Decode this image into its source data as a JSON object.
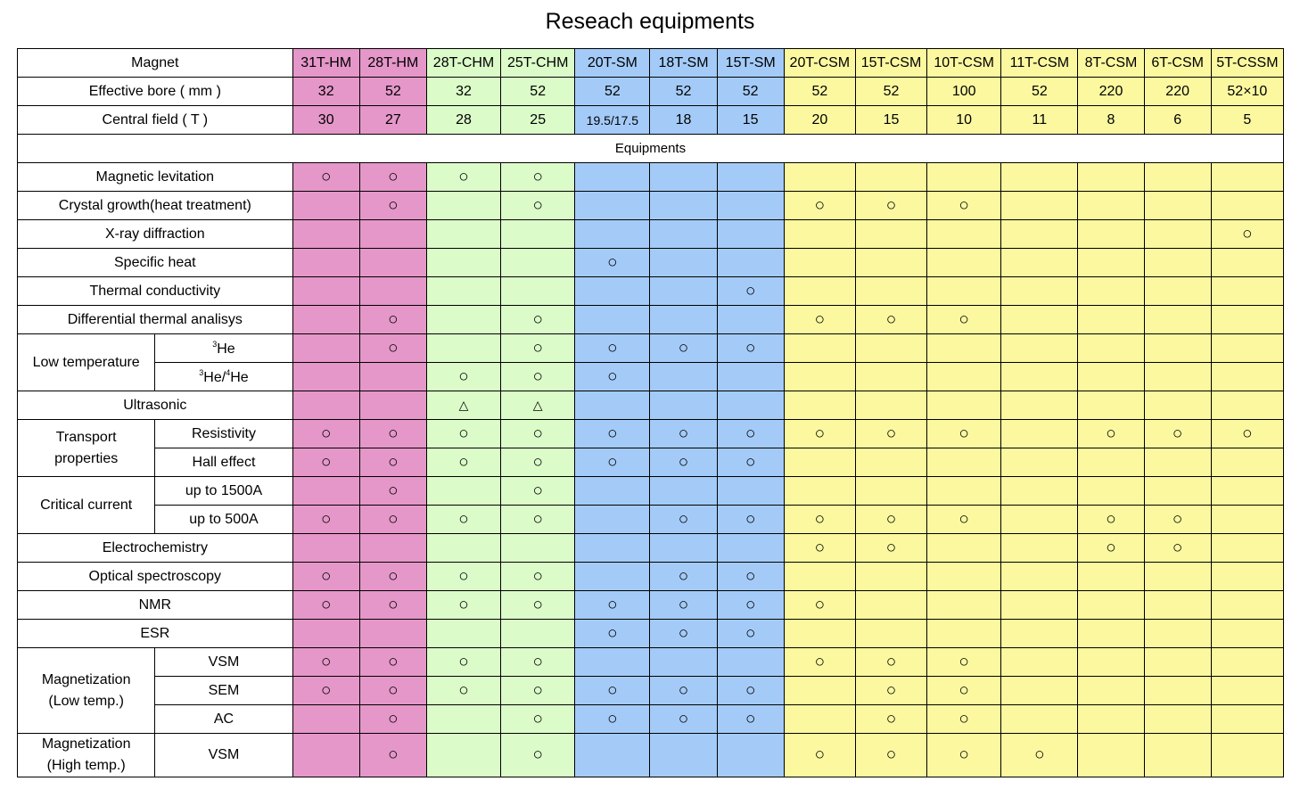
{
  "title": "Reseach equipments",
  "header_labels": {
    "magnet": "Magnet",
    "bore": "Effective bore ( mm )",
    "field": "Central field ( T )",
    "equipments": "Equipments"
  },
  "colors": {
    "pink": "#e597c9",
    "green": "#dbfcc9",
    "blue": "#a4cbf8",
    "yellow": "#fbf8a0"
  },
  "magnets": [
    {
      "name": "31T-HM",
      "bore": "32",
      "field": "30",
      "group": "pink"
    },
    {
      "name": "28T-HM",
      "bore": "52",
      "field": "27",
      "group": "pink"
    },
    {
      "name": "28T-CHM",
      "bore": "32",
      "field": "28",
      "group": "green"
    },
    {
      "name": "25T-CHM",
      "bore": "52",
      "field": "25",
      "group": "green"
    },
    {
      "name": "20T-SM",
      "bore": "52",
      "field": "19.5/17.5",
      "group": "blue"
    },
    {
      "name": "18T-SM",
      "bore": "52",
      "field": "18",
      "group": "blue"
    },
    {
      "name": "15T-SM",
      "bore": "52",
      "field": "15",
      "group": "blue"
    },
    {
      "name": "20T-CSM",
      "bore": "52",
      "field": "20",
      "group": "yellow"
    },
    {
      "name": "15T-CSM",
      "bore": "52",
      "field": "15",
      "group": "yellow"
    },
    {
      "name": "10T-CSM",
      "bore": "100",
      "field": "10",
      "group": "yellow"
    },
    {
      "name": "11T-CSM",
      "bore": "52",
      "field": "11",
      "group": "yellow"
    },
    {
      "name": "8T-CSM",
      "bore": "220",
      "field": "8",
      "group": "yellow"
    },
    {
      "name": "6T-CSM",
      "bore": "220",
      "field": "6",
      "group": "yellow"
    },
    {
      "name": "5T-CSSM",
      "bore": "52×10",
      "field": "5",
      "group": "yellow"
    }
  ],
  "mark_symbols": {
    "o": "○",
    "t": "△"
  },
  "groups": [
    {
      "label": "Magnetic levitation",
      "rows": [
        {
          "marks": [
            "o",
            "o",
            "o",
            "o",
            "",
            "",
            "",
            "",
            "",
            "",
            "",
            "",
            "",
            ""
          ]
        }
      ]
    },
    {
      "label": "Crystal growth(heat treatment)",
      "rows": [
        {
          "marks": [
            "",
            "o",
            "",
            "o",
            "",
            "",
            "",
            "o",
            "o",
            "o",
            "",
            "",
            "",
            ""
          ]
        }
      ]
    },
    {
      "label": "X-ray diffraction",
      "rows": [
        {
          "marks": [
            "",
            "",
            "",
            "",
            "",
            "",
            "",
            "",
            "",
            "",
            "",
            "",
            "",
            "o"
          ]
        }
      ]
    },
    {
      "label": "Specific heat",
      "rows": [
        {
          "marks": [
            "",
            "",
            "",
            "",
            "o",
            "",
            "",
            "",
            "",
            "",
            "",
            "",
            "",
            ""
          ]
        }
      ]
    },
    {
      "label": "Thermal conductivity",
      "rows": [
        {
          "marks": [
            "",
            "",
            "",
            "",
            "",
            "",
            "o",
            "",
            "",
            "",
            "",
            "",
            "",
            ""
          ]
        }
      ]
    },
    {
      "label": "Differential thermal analisys",
      "rows": [
        {
          "marks": [
            "",
            "o",
            "",
            "o",
            "",
            "",
            "",
            "o",
            "o",
            "o",
            "",
            "",
            "",
            ""
          ]
        }
      ]
    },
    {
      "label": "Low temperature",
      "rows": [
        {
          "sub_parts": [
            {
              "sup": "3"
            },
            {
              "text": "He"
            }
          ],
          "marks": [
            "",
            "o",
            "",
            "o",
            "o",
            "o",
            "o",
            "",
            "",
            "",
            "",
            "",
            "",
            ""
          ]
        },
        {
          "sub_parts": [
            {
              "sup": "3"
            },
            {
              "text": "He/"
            },
            {
              "sup": "4"
            },
            {
              "text": "He"
            }
          ],
          "marks": [
            "",
            "",
            "o",
            "o",
            "o",
            "",
            "",
            "",
            "",
            "",
            "",
            "",
            "",
            ""
          ]
        }
      ]
    },
    {
      "label": "Ultrasonic",
      "rows": [
        {
          "marks": [
            "",
            "",
            "t",
            "t",
            "",
            "",
            "",
            "",
            "",
            "",
            "",
            "",
            "",
            ""
          ]
        }
      ]
    },
    {
      "label": "Transport properties",
      "label_lines": [
        "Transport",
        "properties"
      ],
      "rows": [
        {
          "sub": "Resistivity",
          "marks": [
            "o",
            "o",
            "o",
            "o",
            "o",
            "o",
            "o",
            "o",
            "o",
            "o",
            "",
            "o",
            "o",
            "o"
          ]
        },
        {
          "sub": "Hall effect",
          "marks": [
            "o",
            "o",
            "o",
            "o",
            "o",
            "o",
            "o",
            "",
            "",
            "",
            "",
            "",
            "",
            ""
          ]
        }
      ]
    },
    {
      "label": "Critical current",
      "rows": [
        {
          "sub": "up to 1500A",
          "marks": [
            "",
            "o",
            "",
            "o",
            "",
            "",
            "",
            "",
            "",
            "",
            "",
            "",
            "",
            ""
          ]
        },
        {
          "sub": "up to 500A",
          "marks": [
            "o",
            "o",
            "o",
            "o",
            "",
            "o",
            "o",
            "o",
            "o",
            "o",
            "",
            "o",
            "o",
            ""
          ]
        }
      ]
    },
    {
      "label": "Electrochemistry",
      "rows": [
        {
          "marks": [
            "",
            "",
            "",
            "",
            "",
            "",
            "",
            "o",
            "o",
            "",
            "",
            "o",
            "o",
            ""
          ]
        }
      ]
    },
    {
      "label": "Optical spectroscopy",
      "rows": [
        {
          "marks": [
            "o",
            "o",
            "o",
            "o",
            "",
            "o",
            "o",
            "",
            "",
            "",
            "",
            "",
            "",
            ""
          ]
        }
      ]
    },
    {
      "label": "NMR",
      "rows": [
        {
          "marks": [
            "o",
            "o",
            "o",
            "o",
            "o",
            "o",
            "o",
            "o",
            "",
            "",
            "",
            "",
            "",
            ""
          ]
        }
      ]
    },
    {
      "label": "ESR",
      "rows": [
        {
          "marks": [
            "",
            "",
            "",
            "",
            "o",
            "o",
            "o",
            "",
            "",
            "",
            "",
            "",
            "",
            ""
          ]
        }
      ]
    },
    {
      "label": "Magnetization (Low temp.)",
      "label_lines": [
        "Magnetization",
        "(Low temp.)"
      ],
      "rows": [
        {
          "sub": "VSM",
          "marks": [
            "o",
            "o",
            "o",
            "o",
            "",
            "",
            "",
            "o",
            "o",
            "o",
            "",
            "",
            "",
            ""
          ]
        },
        {
          "sub": "SEM",
          "marks": [
            "o",
            "o",
            "o",
            "o",
            "o",
            "o",
            "o",
            "",
            "o",
            "o",
            "",
            "",
            "",
            ""
          ]
        },
        {
          "sub": "AC",
          "marks": [
            "",
            "o",
            "",
            "o",
            "o",
            "o",
            "o",
            "",
            "o",
            "o",
            "",
            "",
            "",
            ""
          ]
        }
      ]
    },
    {
      "label": "Magnetization (High temp.)",
      "label_lines": [
        "Magnetization",
        "(High temp.)"
      ],
      "tall": true,
      "rows": [
        {
          "sub": "VSM",
          "marks": [
            "",
            "o",
            "",
            "o",
            "",
            "",
            "",
            "o",
            "o",
            "o",
            "o",
            "",
            "",
            ""
          ]
        }
      ]
    }
  ]
}
